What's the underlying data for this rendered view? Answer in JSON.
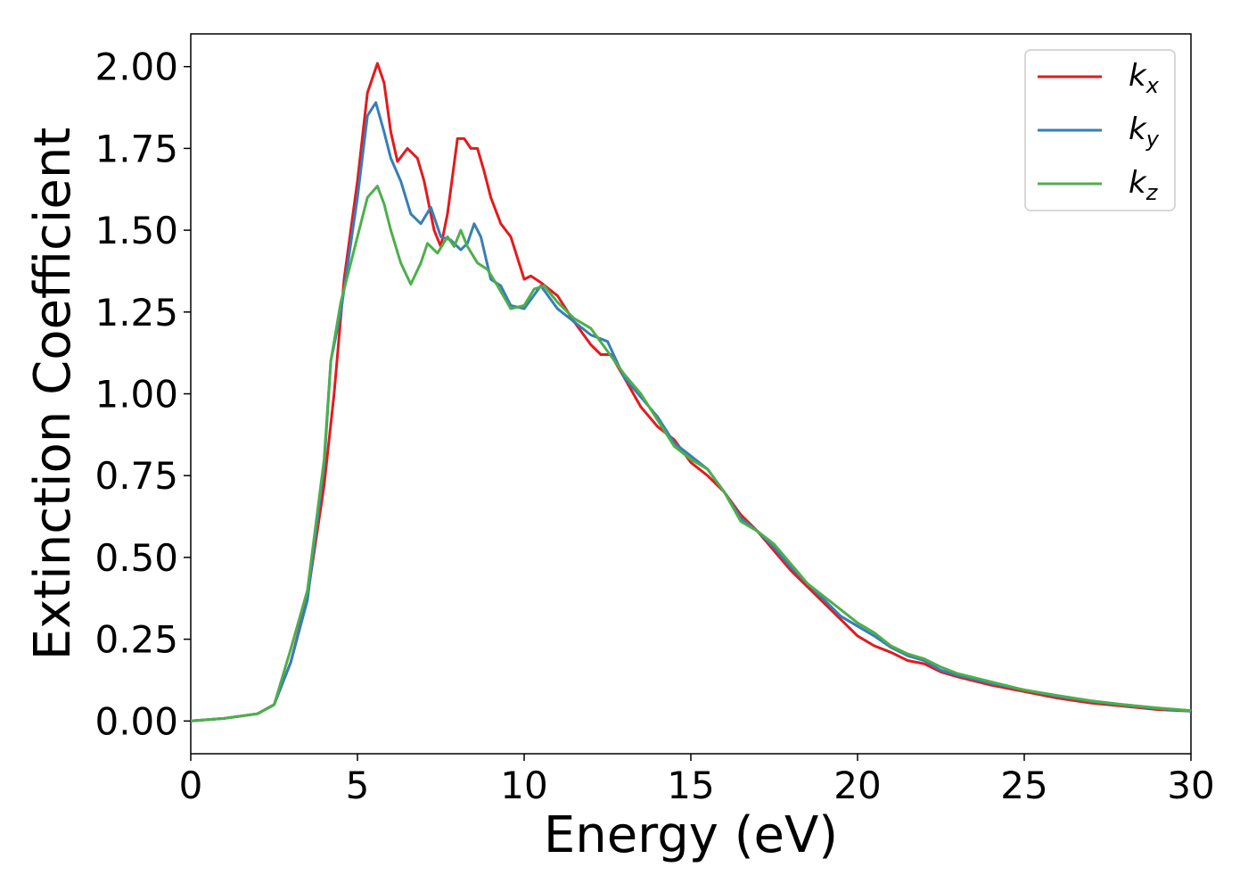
{
  "chart_data": {
    "type": "line",
    "xlabel": "Energy (eV)",
    "ylabel": "Extinction Coefficient",
    "xlim": [
      0,
      30
    ],
    "ylim": [
      -0.1,
      2.1
    ],
    "xticks": [
      0,
      5,
      10,
      15,
      20,
      25,
      30
    ],
    "xtick_labels": [
      "0",
      "5",
      "10",
      "15",
      "20",
      "25",
      "30"
    ],
    "yticks": [
      0,
      0.25,
      0.5,
      0.75,
      1.0,
      1.25,
      1.5,
      1.75,
      2.0
    ],
    "ytick_labels": [
      "0.00",
      "0.25",
      "0.50",
      "0.75",
      "1.00",
      "1.25",
      "1.50",
      "1.75",
      "2.00"
    ],
    "grid": false,
    "legend_position": "top-right",
    "series": [
      {
        "name_main": "k",
        "name_sub": "x",
        "color": "#e41a1c",
        "points": [
          [
            0,
            0
          ],
          [
            1,
            0.008
          ],
          [
            2,
            0.022
          ],
          [
            2.5,
            0.05
          ],
          [
            3,
            0.18
          ],
          [
            3.5,
            0.38
          ],
          [
            4,
            0.72
          ],
          [
            4.3,
            1.0
          ],
          [
            4.6,
            1.35
          ],
          [
            5,
            1.65
          ],
          [
            5.3,
            1.92
          ],
          [
            5.6,
            2.01
          ],
          [
            5.8,
            1.95
          ],
          [
            6.0,
            1.8
          ],
          [
            6.2,
            1.71
          ],
          [
            6.5,
            1.75
          ],
          [
            6.8,
            1.72
          ],
          [
            7.0,
            1.65
          ],
          [
            7.3,
            1.5
          ],
          [
            7.5,
            1.45
          ],
          [
            7.7,
            1.55
          ],
          [
            8.0,
            1.78
          ],
          [
            8.2,
            1.78
          ],
          [
            8.4,
            1.75
          ],
          [
            8.6,
            1.75
          ],
          [
            8.8,
            1.68
          ],
          [
            9.0,
            1.6
          ],
          [
            9.3,
            1.52
          ],
          [
            9.6,
            1.48
          ],
          [
            10.0,
            1.35
          ],
          [
            10.2,
            1.36
          ],
          [
            10.5,
            1.34
          ],
          [
            11.0,
            1.3
          ],
          [
            11.5,
            1.22
          ],
          [
            12.0,
            1.15
          ],
          [
            12.3,
            1.12
          ],
          [
            12.6,
            1.12
          ],
          [
            13,
            1.05
          ],
          [
            13.5,
            0.96
          ],
          [
            14,
            0.9
          ],
          [
            14.5,
            0.86
          ],
          [
            15,
            0.79
          ],
          [
            15.5,
            0.75
          ],
          [
            16,
            0.7
          ],
          [
            16.5,
            0.63
          ],
          [
            17,
            0.58
          ],
          [
            17.5,
            0.52
          ],
          [
            18,
            0.46
          ],
          [
            18.5,
            0.41
          ],
          [
            19,
            0.36
          ],
          [
            19.5,
            0.31
          ],
          [
            20,
            0.26
          ],
          [
            20.5,
            0.23
          ],
          [
            21,
            0.21
          ],
          [
            21.5,
            0.185
          ],
          [
            22,
            0.175
          ],
          [
            22.5,
            0.15
          ],
          [
            23,
            0.135
          ],
          [
            24,
            0.11
          ],
          [
            25,
            0.09
          ],
          [
            26,
            0.07
          ],
          [
            27,
            0.055
          ],
          [
            28,
            0.045
          ],
          [
            29,
            0.035
          ],
          [
            30,
            0.03
          ]
        ]
      },
      {
        "name_main": "k",
        "name_sub": "y",
        "color": "#377eb8",
        "points": [
          [
            0,
            0
          ],
          [
            1,
            0.008
          ],
          [
            2,
            0.022
          ],
          [
            2.5,
            0.05
          ],
          [
            3,
            0.18
          ],
          [
            3.5,
            0.37
          ],
          [
            4,
            0.78
          ],
          [
            4.2,
            1.1
          ],
          [
            4.5,
            1.25
          ],
          [
            5,
            1.6
          ],
          [
            5.3,
            1.85
          ],
          [
            5.55,
            1.89
          ],
          [
            5.8,
            1.8
          ],
          [
            6.0,
            1.72
          ],
          [
            6.3,
            1.65
          ],
          [
            6.6,
            1.55
          ],
          [
            6.9,
            1.52
          ],
          [
            7.2,
            1.57
          ],
          [
            7.5,
            1.48
          ],
          [
            7.8,
            1.47
          ],
          [
            8.1,
            1.44
          ],
          [
            8.3,
            1.46
          ],
          [
            8.5,
            1.52
          ],
          [
            8.7,
            1.48
          ],
          [
            9.0,
            1.35
          ],
          [
            9.3,
            1.33
          ],
          [
            9.6,
            1.27
          ],
          [
            10.0,
            1.26
          ],
          [
            10.5,
            1.33
          ],
          [
            11.0,
            1.26
          ],
          [
            11.5,
            1.22
          ],
          [
            12.0,
            1.18
          ],
          [
            12.5,
            1.16
          ],
          [
            13,
            1.05
          ],
          [
            13.5,
            0.99
          ],
          [
            14,
            0.93
          ],
          [
            14.5,
            0.85
          ],
          [
            15,
            0.81
          ],
          [
            15.5,
            0.77
          ],
          [
            16,
            0.7
          ],
          [
            16.5,
            0.62
          ],
          [
            17,
            0.58
          ],
          [
            17.5,
            0.53
          ],
          [
            18,
            0.47
          ],
          [
            18.5,
            0.42
          ],
          [
            19,
            0.37
          ],
          [
            19.5,
            0.32
          ],
          [
            20,
            0.29
          ],
          [
            20.5,
            0.26
          ],
          [
            21,
            0.225
          ],
          [
            21.5,
            0.2
          ],
          [
            22,
            0.185
          ],
          [
            22.5,
            0.155
          ],
          [
            23,
            0.14
          ],
          [
            24,
            0.115
          ],
          [
            25,
            0.095
          ],
          [
            26,
            0.075
          ],
          [
            27,
            0.06
          ],
          [
            28,
            0.048
          ],
          [
            29,
            0.038
          ],
          [
            30,
            0.03
          ]
        ]
      },
      {
        "name_main": "k",
        "name_sub": "z",
        "color": "#4daf4a",
        "points": [
          [
            0,
            0
          ],
          [
            1,
            0.008
          ],
          [
            2,
            0.022
          ],
          [
            2.5,
            0.05
          ],
          [
            3,
            0.22
          ],
          [
            3.5,
            0.4
          ],
          [
            4,
            0.8
          ],
          [
            4.2,
            1.1
          ],
          [
            4.5,
            1.28
          ],
          [
            5,
            1.48
          ],
          [
            5.3,
            1.6
          ],
          [
            5.6,
            1.635
          ],
          [
            5.8,
            1.58
          ],
          [
            6.0,
            1.5
          ],
          [
            6.3,
            1.4
          ],
          [
            6.6,
            1.335
          ],
          [
            6.9,
            1.4
          ],
          [
            7.1,
            1.46
          ],
          [
            7.4,
            1.43
          ],
          [
            7.7,
            1.48
          ],
          [
            7.9,
            1.45
          ],
          [
            8.1,
            1.5
          ],
          [
            8.3,
            1.45
          ],
          [
            8.6,
            1.4
          ],
          [
            8.9,
            1.38
          ],
          [
            9.2,
            1.33
          ],
          [
            9.6,
            1.26
          ],
          [
            10.0,
            1.27
          ],
          [
            10.3,
            1.32
          ],
          [
            10.6,
            1.33
          ],
          [
            11.0,
            1.28
          ],
          [
            11.5,
            1.23
          ],
          [
            12.0,
            1.2
          ],
          [
            12.5,
            1.13
          ],
          [
            13,
            1.06
          ],
          [
            13.5,
            1.0
          ],
          [
            14,
            0.92
          ],
          [
            14.5,
            0.84
          ],
          [
            15,
            0.8
          ],
          [
            15.5,
            0.77
          ],
          [
            16,
            0.7
          ],
          [
            16.5,
            0.61
          ],
          [
            17,
            0.58
          ],
          [
            17.5,
            0.54
          ],
          [
            18,
            0.48
          ],
          [
            18.5,
            0.42
          ],
          [
            19,
            0.38
          ],
          [
            19.5,
            0.34
          ],
          [
            20,
            0.3
          ],
          [
            20.5,
            0.27
          ],
          [
            21,
            0.23
          ],
          [
            21.5,
            0.205
          ],
          [
            22,
            0.19
          ],
          [
            22.5,
            0.165
          ],
          [
            23,
            0.145
          ],
          [
            24,
            0.12
          ],
          [
            25,
            0.095
          ],
          [
            26,
            0.078
          ],
          [
            27,
            0.062
          ],
          [
            28,
            0.05
          ],
          [
            29,
            0.04
          ],
          [
            30,
            0.032
          ]
        ]
      }
    ]
  }
}
